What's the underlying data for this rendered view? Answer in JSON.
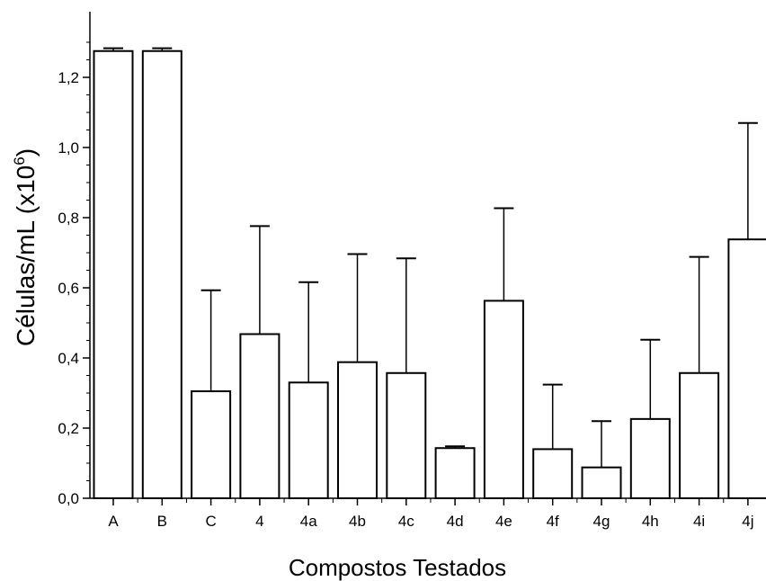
{
  "chart_data": {
    "type": "bar",
    "categories": [
      "A",
      "B",
      "C",
      "4",
      "4a",
      "4b",
      "4c",
      "4d",
      "4e",
      "4f",
      "4g",
      "4h",
      "4i",
      "4j"
    ],
    "values": [
      1.275,
      1.275,
      0.305,
      0.468,
      0.33,
      0.388,
      0.357,
      0.143,
      0.563,
      0.14,
      0.088,
      0.226,
      0.357,
      0.738
    ],
    "error_upper": [
      1.283,
      1.283,
      0.593,
      0.776,
      0.616,
      0.696,
      0.684,
      0.148,
      0.827,
      0.324,
      0.22,
      0.452,
      0.688,
      1.07
    ],
    "xlabel": "Compostos Testados",
    "ylabel_main": "Células/mL (x10",
    "ylabel_sup": "6",
    "ylabel_close": ")",
    "ylim": [
      0,
      1.3
    ],
    "y_ticks": [
      {
        "value": 0.0,
        "label": "0,0"
      },
      {
        "value": 0.2,
        "label": "0,2"
      },
      {
        "value": 0.4,
        "label": "0,4"
      },
      {
        "value": 0.6,
        "label": "0,6"
      },
      {
        "value": 0.8,
        "label": "0,8"
      },
      {
        "value": 1.0,
        "label": "1,0"
      },
      {
        "value": 1.2,
        "label": "1,2"
      }
    ],
    "grid": false,
    "legend": "none",
    "bar_fill": "#ffffff",
    "bar_stroke": "#000000"
  }
}
